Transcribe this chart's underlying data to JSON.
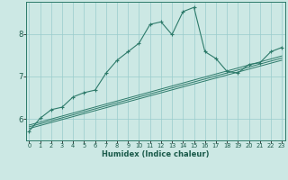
{
  "title": "",
  "xlabel": "Humidex (Indice chaleur)",
  "bg_color": "#cce8e4",
  "grid_color": "#99cccc",
  "line_color": "#2d7a6a",
  "x_ticks": [
    0,
    1,
    2,
    3,
    4,
    5,
    6,
    7,
    8,
    9,
    10,
    11,
    12,
    13,
    14,
    15,
    16,
    17,
    18,
    19,
    20,
    21,
    22,
    23
  ],
  "x_tick_labels": [
    "0",
    "1",
    "2",
    "3",
    "4",
    "5",
    "6",
    "7",
    "8",
    "9",
    "10",
    "11",
    "12",
    "13",
    "14",
    "15",
    "16",
    "17",
    "18",
    "19",
    "20",
    "21",
    "22",
    "23"
  ],
  "y_ticks": [
    6,
    7,
    8
  ],
  "ylim": [
    5.5,
    8.75
  ],
  "xlim": [
    -0.3,
    23.3
  ],
  "curve_x": [
    0,
    1,
    2,
    3,
    4,
    5,
    6,
    7,
    8,
    9,
    10,
    11,
    12,
    13,
    14,
    15,
    16,
    17,
    18,
    19,
    20,
    21,
    22,
    23
  ],
  "curve_y": [
    5.72,
    6.02,
    6.22,
    6.28,
    6.52,
    6.62,
    6.68,
    7.08,
    7.38,
    7.58,
    7.78,
    8.22,
    8.28,
    7.98,
    8.52,
    8.62,
    7.58,
    7.42,
    7.12,
    7.08,
    7.28,
    7.32,
    7.58,
    7.68
  ],
  "line1_y": [
    5.78,
    7.38
  ],
  "line2_y": [
    5.82,
    7.43
  ],
  "line3_y": [
    5.86,
    7.48
  ]
}
